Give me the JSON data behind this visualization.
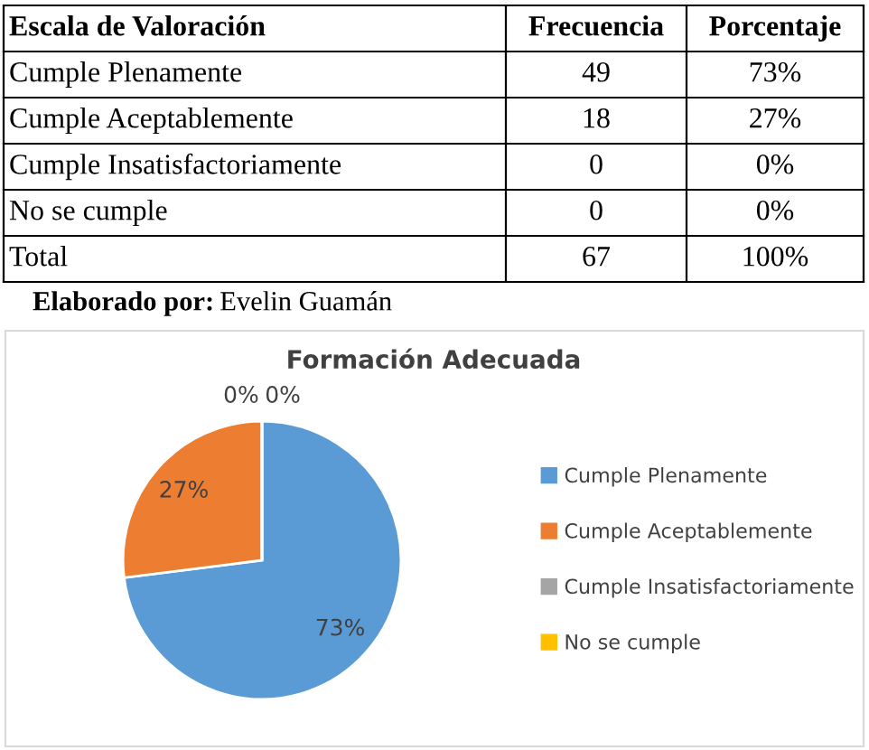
{
  "chart_data": {
    "type": "pie",
    "title": "Formación Adecuada",
    "categories": [
      "Cumple Plenamente",
      "Cumple Aceptablemente",
      "Cumple Insatisfactoriamente",
      "No se cumple"
    ],
    "values": [
      73,
      27,
      0,
      0
    ],
    "value_labels": [
      "73%",
      "27%",
      "0%",
      "0%"
    ],
    "colors": [
      "#5b9bd5",
      "#ed7d31",
      "#a5a5a5",
      "#ffc000"
    ],
    "legend": "right",
    "annotations": [
      "Escala de Valoración",
      "Frecuencia",
      "Porcentaje",
      "49",
      "18",
      "0",
      "0",
      "Total",
      "67",
      "100%",
      "Elaborado por: Evelin Guamán"
    ]
  }
}
